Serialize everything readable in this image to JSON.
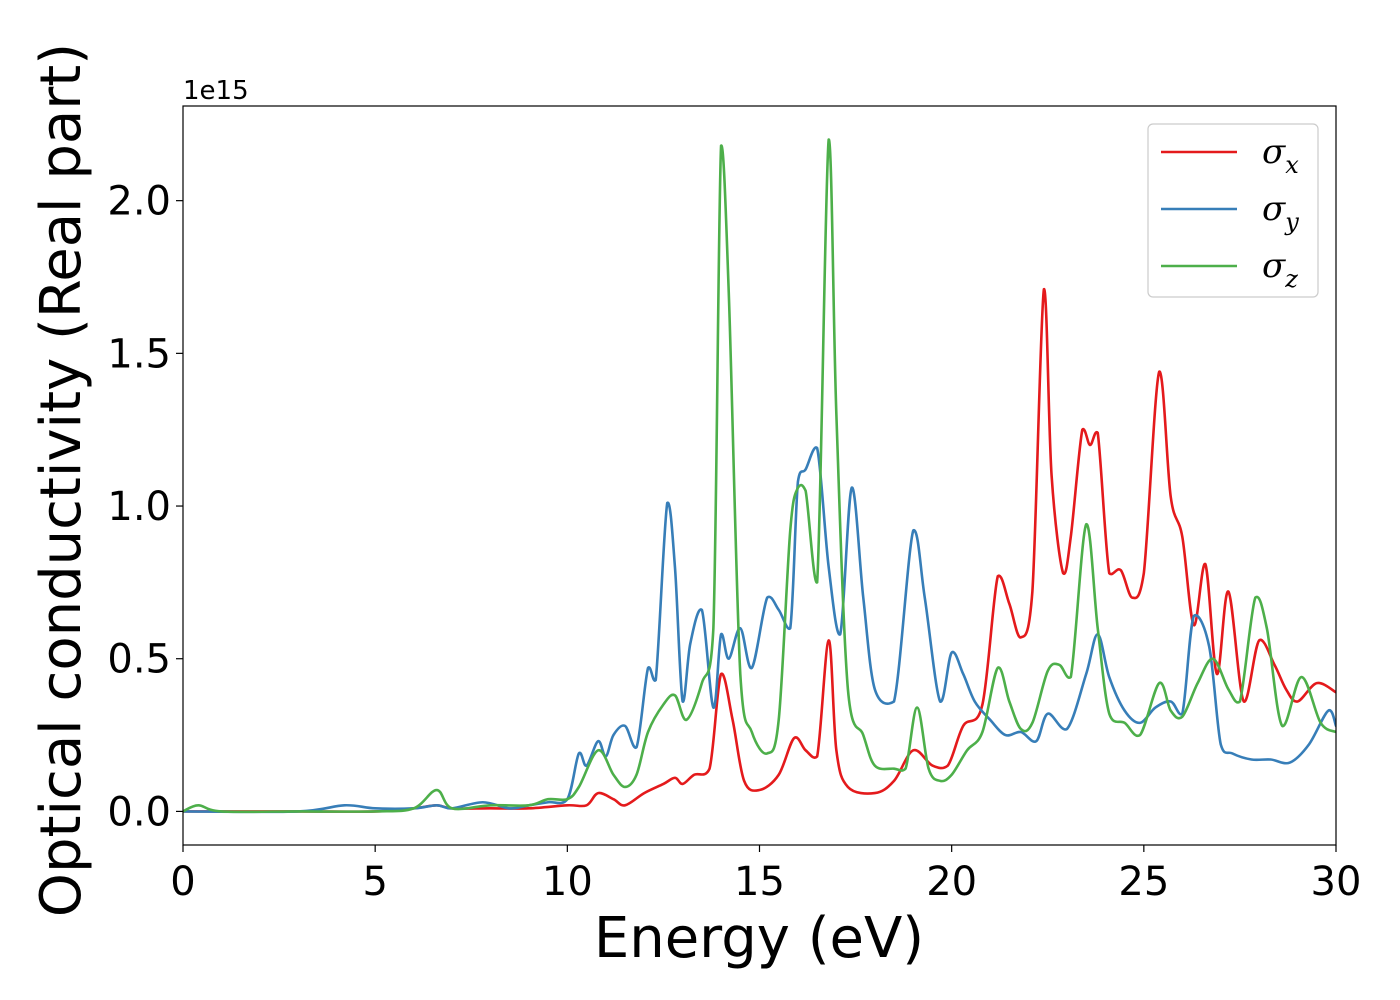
{
  "chart_data": {
    "type": "line",
    "xlabel": "Energy (eV)",
    "ylabel": "Optical conductivity (Real part)",
    "y_offset_label": "1e15",
    "y_scale": 1000000000000000.0,
    "xlim": [
      0,
      30
    ],
    "ylim": [
      -0.11,
      2.31
    ],
    "x_ticks": [
      0,
      5,
      10,
      15,
      20,
      25,
      30
    ],
    "x_tick_labels": [
      "0",
      "5",
      "10",
      "15",
      "20",
      "25",
      "30"
    ],
    "y_ticks": [
      0.0,
      0.5,
      1.0,
      1.5,
      2.0
    ],
    "y_tick_labels": [
      "0.0",
      "0.5",
      "1.0",
      "1.5",
      "2.0"
    ],
    "grid": false,
    "legend_position": "top-right",
    "series": [
      {
        "name": "σ",
        "subscript": "x",
        "color": "#e41a1c",
        "x": [
          0,
          3,
          5,
          6,
          6.6,
          7,
          8,
          9,
          10,
          10.5,
          10.8,
          11.2,
          11.5,
          12,
          12.5,
          12.8,
          13,
          13.3,
          13.7,
          14,
          14.3,
          14.6,
          15,
          15.5,
          15.9,
          16.2,
          16.5,
          16.8,
          17,
          17.3,
          18,
          18.5,
          19,
          19.5,
          19.9,
          20.3,
          20.8,
          21.2,
          21.5,
          21.8,
          22.1,
          22.4,
          22.6,
          22.9,
          23.1,
          23.4,
          23.6,
          23.8,
          24.1,
          24.4,
          24.7,
          25.0,
          25.4,
          25.7,
          26.0,
          26.3,
          26.6,
          26.9,
          27.2,
          27.6,
          28.0,
          28.4,
          28.7,
          29.0,
          29.5,
          30.0
        ],
        "y": [
          0.0,
          0.0,
          0.0,
          0.01,
          0.02,
          0.01,
          0.01,
          0.01,
          0.02,
          0.02,
          0.06,
          0.04,
          0.02,
          0.06,
          0.09,
          0.11,
          0.09,
          0.12,
          0.14,
          0.45,
          0.3,
          0.1,
          0.07,
          0.12,
          0.24,
          0.2,
          0.18,
          0.56,
          0.2,
          0.08,
          0.06,
          0.1,
          0.2,
          0.15,
          0.15,
          0.28,
          0.35,
          0.77,
          0.68,
          0.57,
          0.72,
          1.71,
          1.1,
          0.78,
          0.9,
          1.25,
          1.2,
          1.24,
          0.78,
          0.79,
          0.7,
          0.78,
          1.44,
          1.03,
          0.9,
          0.61,
          0.81,
          0.45,
          0.72,
          0.36,
          0.56,
          0.48,
          0.4,
          0.36,
          0.42,
          0.39
        ]
      },
      {
        "name": "σ",
        "subscript": "y",
        "color": "#377eb8",
        "x": [
          0,
          3,
          4.2,
          5,
          6,
          6.6,
          7,
          7.8,
          8.5,
          9,
          9.5,
          10,
          10.3,
          10.5,
          10.8,
          11.0,
          11.2,
          11.5,
          11.8,
          12.1,
          12.3,
          12.6,
          12.8,
          13.0,
          13.2,
          13.5,
          13.8,
          14.0,
          14.2,
          14.5,
          14.8,
          15.2,
          15.5,
          15.8,
          16.0,
          16.2,
          16.5,
          16.8,
          17.1,
          17.4,
          17.7,
          18.0,
          18.5,
          19.0,
          19.3,
          19.7,
          20.0,
          20.3,
          20.6,
          21.0,
          21.4,
          21.8,
          22.2,
          22.5,
          23.0,
          23.5,
          23.8,
          24.1,
          24.5,
          24.9,
          25.3,
          25.7,
          26.0,
          26.3,
          26.7,
          27.0,
          27.3,
          27.8,
          28.3,
          28.8,
          29.3,
          29.8,
          30.0
        ],
        "y": [
          0.0,
          0.0,
          0.02,
          0.01,
          0.01,
          0.02,
          0.01,
          0.03,
          0.01,
          0.02,
          0.03,
          0.04,
          0.19,
          0.15,
          0.23,
          0.18,
          0.25,
          0.28,
          0.21,
          0.47,
          0.43,
          1.01,
          0.8,
          0.36,
          0.55,
          0.66,
          0.34,
          0.58,
          0.5,
          0.6,
          0.47,
          0.7,
          0.66,
          0.6,
          1.08,
          1.12,
          1.19,
          0.8,
          0.58,
          1.06,
          0.7,
          0.4,
          0.36,
          0.92,
          0.7,
          0.36,
          0.52,
          0.45,
          0.36,
          0.3,
          0.25,
          0.26,
          0.23,
          0.32,
          0.27,
          0.45,
          0.58,
          0.44,
          0.33,
          0.29,
          0.34,
          0.36,
          0.32,
          0.64,
          0.54,
          0.22,
          0.19,
          0.17,
          0.17,
          0.16,
          0.22,
          0.33,
          0.28
        ]
      },
      {
        "name": "σ",
        "subscript": "z",
        "color": "#4daf4a",
        "x": [
          0,
          0.4,
          1,
          3,
          5,
          6,
          6.6,
          7,
          8,
          9,
          9.5,
          10,
          10.3,
          10.8,
          11.2,
          11.5,
          11.8,
          12.1,
          12.5,
          12.8,
          13.1,
          13.5,
          13.8,
          14.0,
          14.2,
          14.5,
          14.8,
          15.2,
          15.5,
          15.8,
          16.0,
          16.2,
          16.5,
          16.8,
          17.0,
          17.3,
          17.7,
          18.0,
          18.5,
          18.8,
          19.1,
          19.4,
          19.7,
          20.0,
          20.4,
          20.8,
          21.2,
          21.5,
          21.8,
          22.1,
          22.5,
          22.8,
          23.1,
          23.5,
          23.8,
          24.1,
          24.5,
          24.9,
          25.4,
          25.7,
          26.0,
          26.4,
          26.8,
          27.2,
          27.5,
          27.9,
          28.2,
          28.6,
          29.1,
          29.6,
          30.0
        ],
        "y": [
          0.0,
          0.02,
          0.0,
          0.0,
          0.0,
          0.01,
          0.07,
          0.01,
          0.02,
          0.02,
          0.04,
          0.04,
          0.08,
          0.2,
          0.12,
          0.08,
          0.12,
          0.26,
          0.35,
          0.38,
          0.3,
          0.42,
          0.6,
          2.18,
          1.7,
          0.45,
          0.26,
          0.19,
          0.3,
          0.92,
          1.06,
          1.05,
          0.75,
          2.2,
          1.3,
          0.4,
          0.25,
          0.15,
          0.14,
          0.14,
          0.34,
          0.14,
          0.1,
          0.12,
          0.2,
          0.26,
          0.47,
          0.36,
          0.27,
          0.29,
          0.46,
          0.48,
          0.44,
          0.94,
          0.6,
          0.32,
          0.29,
          0.25,
          0.42,
          0.33,
          0.31,
          0.42,
          0.5,
          0.4,
          0.36,
          0.7,
          0.6,
          0.28,
          0.44,
          0.29,
          0.26
        ]
      }
    ]
  }
}
